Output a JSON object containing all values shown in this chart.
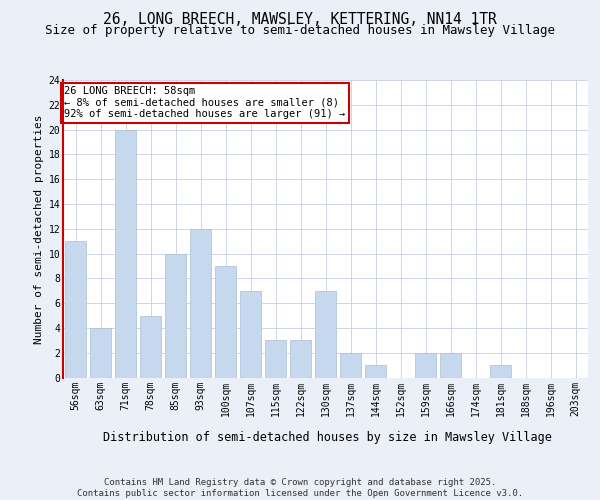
{
  "title": "26, LONG BREECH, MAWSLEY, KETTERING, NN14 1TR",
  "subtitle": "Size of property relative to semi-detached houses in Mawsley Village",
  "xlabel": "Distribution of semi-detached houses by size in Mawsley Village",
  "ylabel": "Number of semi-detached properties",
  "categories": [
    "56sqm",
    "63sqm",
    "71sqm",
    "78sqm",
    "85sqm",
    "93sqm",
    "100sqm",
    "107sqm",
    "115sqm",
    "122sqm",
    "130sqm",
    "137sqm",
    "144sqm",
    "152sqm",
    "159sqm",
    "166sqm",
    "174sqm",
    "181sqm",
    "188sqm",
    "196sqm",
    "203sqm"
  ],
  "values": [
    11,
    4,
    20,
    5,
    10,
    12,
    9,
    7,
    3,
    3,
    7,
    2,
    1,
    0,
    2,
    2,
    0,
    1,
    0,
    0,
    0
  ],
  "bar_color": "#c5d8ed",
  "bar_edgecolor": "#aabfd6",
  "annotation_text": "26 LONG BREECH: 58sqm\n← 8% of semi-detached houses are smaller (8)\n92% of semi-detached houses are larger (91) →",
  "annotation_box_edgecolor": "#cc0000",
  "ylim": [
    0,
    24
  ],
  "yticks": [
    0,
    2,
    4,
    6,
    8,
    10,
    12,
    14,
    16,
    18,
    20,
    22,
    24
  ],
  "footer": "Contains HM Land Registry data © Crown copyright and database right 2025.\nContains public sector information licensed under the Open Government Licence v3.0.",
  "background_color": "#eaeff8",
  "plot_background": "#ffffff",
  "grid_color": "#c8d0de",
  "title_fontsize": 10.5,
  "subtitle_fontsize": 9,
  "xlabel_fontsize": 8.5,
  "ylabel_fontsize": 8,
  "tick_fontsize": 7,
  "annotation_fontsize": 7.5,
  "footer_fontsize": 6.5
}
